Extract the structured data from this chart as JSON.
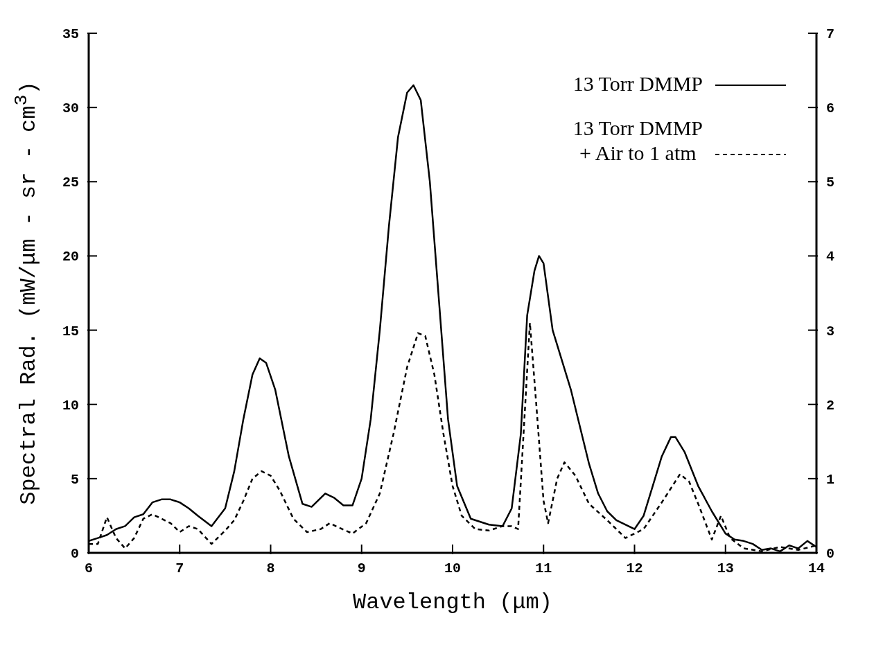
{
  "chart_data": {
    "type": "line",
    "xlabel": "Wavelength (μm)",
    "ylabel": "Spectral Rad. (mW/μm - sr - cm$^{3}$)",
    "xlim": [
      6,
      14
    ],
    "xticks": [
      6,
      7,
      8,
      9,
      10,
      11,
      12,
      13,
      14
    ],
    "ylim": [
      0,
      35
    ],
    "yticks": [
      0,
      5,
      10,
      15,
      20,
      25,
      30,
      35
    ],
    "y2lim": [
      0,
      7
    ],
    "y2ticks": [
      0,
      1,
      2,
      3,
      4,
      5,
      6,
      7
    ],
    "grid": false,
    "legend": "top right",
    "marker": "none",
    "series": [
      {
        "name": "13 Torr DMMP",
        "color": "#000000",
        "line_style": "solid",
        "x": [
          6.0,
          6.1,
          6.2,
          6.3,
          6.4,
          6.5,
          6.6,
          6.7,
          6.8,
          6.9,
          7.0,
          7.1,
          7.2,
          7.35,
          7.5,
          7.6,
          7.7,
          7.8,
          7.88,
          7.95,
          8.05,
          8.2,
          8.35,
          8.45,
          8.6,
          8.7,
          8.8,
          8.9,
          9.0,
          9.1,
          9.2,
          9.3,
          9.4,
          9.5,
          9.57,
          9.65,
          9.75,
          9.85,
          9.95,
          10.05,
          10.2,
          10.4,
          10.55,
          10.65,
          10.75,
          10.82,
          10.9,
          10.95,
          11.0,
          11.1,
          11.3,
          11.5,
          11.6,
          11.7,
          11.8,
          12.0,
          12.1,
          12.2,
          12.3,
          12.4,
          12.45,
          12.55,
          12.7,
          12.85,
          13.0,
          13.1,
          13.2,
          13.3,
          13.4,
          13.5,
          13.6,
          13.7,
          13.8,
          13.9,
          14.0
        ],
        "values": [
          0.8,
          1.0,
          1.2,
          1.6,
          1.8,
          2.4,
          2.6,
          3.4,
          3.6,
          3.6,
          3.4,
          3.0,
          2.5,
          1.8,
          3.0,
          5.5,
          9.0,
          12.0,
          13.1,
          12.8,
          11,
          6.5,
          3.3,
          3.1,
          4.0,
          3.7,
          3.2,
          3.2,
          5,
          9,
          15,
          22,
          28,
          31,
          31.5,
          30.5,
          25,
          17,
          9,
          4.5,
          2.3,
          1.9,
          1.8,
          3,
          8,
          16,
          19,
          20,
          19.5,
          15,
          11,
          6,
          4,
          2.8,
          2.2,
          1.6,
          2.5,
          4.5,
          6.5,
          7.8,
          7.8,
          6.8,
          4.5,
          2.8,
          1.3,
          0.9,
          0.8,
          0.6,
          0.2,
          0.3,
          0.1,
          0.5,
          0.3,
          0.8,
          0.4
        ]
      },
      {
        "name": "13 Torr DMMP\n+ Air to 1 atm",
        "color": "#000000",
        "line_style": "dashed",
        "axis": "y2",
        "x": [
          6.0,
          6.1,
          6.2,
          6.3,
          6.4,
          6.5,
          6.6,
          6.7,
          6.8,
          6.9,
          7.0,
          7.1,
          7.2,
          7.35,
          7.5,
          7.6,
          7.7,
          7.8,
          7.9,
          8.0,
          8.1,
          8.25,
          8.4,
          8.55,
          8.65,
          8.75,
          8.9,
          9.05,
          9.2,
          9.35,
          9.5,
          9.62,
          9.7,
          9.8,
          9.9,
          10.0,
          10.1,
          10.25,
          10.4,
          10.55,
          10.65,
          10.72,
          10.78,
          10.85,
          10.92,
          11.0,
          11.05,
          11.15,
          11.23,
          11.35,
          11.5,
          11.7,
          11.9,
          12.1,
          12.3,
          12.5,
          12.6,
          12.7,
          12.85,
          12.95,
          13.05,
          13.2,
          13.4,
          13.6,
          13.8,
          14.0
        ],
        "values": [
          0.12,
          0.12,
          0.48,
          0.2,
          0.06,
          0.2,
          0.46,
          0.52,
          0.46,
          0.4,
          0.28,
          0.36,
          0.32,
          0.12,
          0.3,
          0.44,
          0.7,
          1.0,
          1.1,
          1.04,
          0.84,
          0.46,
          0.28,
          0.32,
          0.4,
          0.34,
          0.26,
          0.4,
          0.8,
          1.6,
          2.5,
          2.96,
          2.92,
          2.4,
          1.6,
          0.9,
          0.5,
          0.32,
          0.3,
          0.36,
          0.36,
          0.32,
          1.6,
          3.1,
          2.0,
          0.7,
          0.4,
          1.0,
          1.22,
          1.04,
          0.66,
          0.44,
          0.2,
          0.32,
          0.68,
          1.06,
          0.96,
          0.66,
          0.18,
          0.5,
          0.2,
          0.06,
          0.02,
          0.08,
          0.04,
          0.1
        ]
      }
    ]
  }
}
